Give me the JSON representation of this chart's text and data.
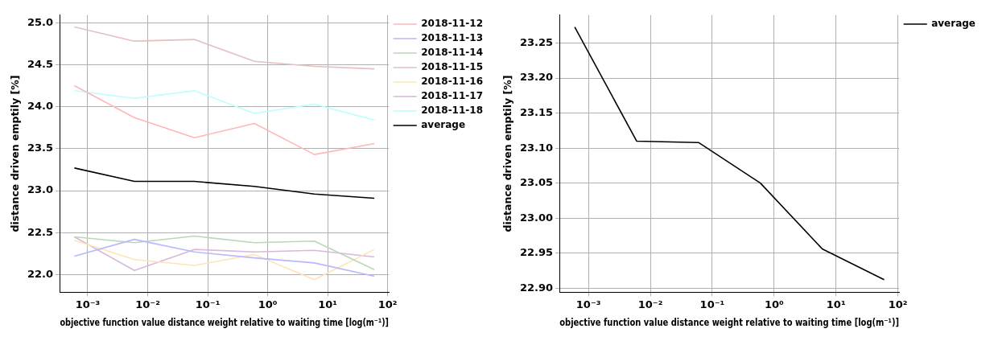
{
  "chart_data": [
    {
      "type": "line",
      "xlabel": "objective function value distance weight relative to waiting time [log(m⁻¹)]",
      "ylabel": "distance driven emptily [%]",
      "x": [
        0.0006,
        0.006,
        0.06,
        0.6,
        6,
        60
      ],
      "log": "x",
      "grid": true,
      "legend": "top right",
      "xlim": [
        0.00034,
        105
      ],
      "xticks": [
        {
          "value": 0.001,
          "label": "10⁻³"
        },
        {
          "value": 0.01,
          "label": "10⁻²"
        },
        {
          "value": 0.1,
          "label": "10⁻¹"
        },
        {
          "value": 1,
          "label": "10⁰"
        },
        {
          "value": 10,
          "label": "10¹"
        },
        {
          "value": 100,
          "label": "10²"
        }
      ],
      "ylim": [
        21.79,
        25.09
      ],
      "yticks": [
        {
          "value": 22,
          "label": "22.0"
        },
        {
          "value": 22.5,
          "label": "22.5"
        },
        {
          "value": 23,
          "label": "23.0"
        },
        {
          "value": 23.5,
          "label": "23.5"
        },
        {
          "value": 24,
          "label": "24.0"
        },
        {
          "value": 24.5,
          "label": "24.5"
        },
        {
          "value": 25,
          "label": "25.0"
        }
      ],
      "series": [
        {
          "name": "2018-11-12",
          "color": "#ffb8b8",
          "values": [
            24.25,
            23.87,
            23.63,
            23.8,
            23.43,
            23.56
          ]
        },
        {
          "name": "2018-11-13",
          "color": "#b8b8ff",
          "values": [
            22.22,
            22.42,
            22.27,
            22.2,
            22.14,
            21.98
          ]
        },
        {
          "name": "2018-11-14",
          "color": "#b8d9b8",
          "values": [
            22.45,
            22.38,
            22.46,
            22.38,
            22.4,
            22.06
          ]
        },
        {
          "name": "2018-11-15",
          "color": "#e4c0c0",
          "values": [
            24.95,
            24.78,
            24.8,
            24.54,
            24.48,
            24.45
          ]
        },
        {
          "name": "2018-11-16",
          "color": "#ffe4b8",
          "values": [
            22.41,
            22.18,
            22.11,
            22.24,
            21.94,
            22.3
          ]
        },
        {
          "name": "2018-11-17",
          "color": "#d9b8d9",
          "values": [
            22.45,
            22.05,
            22.3,
            22.27,
            22.29,
            22.21
          ]
        },
        {
          "name": "2018-11-18",
          "color": "#b8ffff",
          "values": [
            24.19,
            24.1,
            24.19,
            23.92,
            24.03,
            23.84
          ]
        },
        {
          "name": "average",
          "color": "#000000",
          "values": [
            23.27,
            23.11,
            23.11,
            23.05,
            22.96,
            22.91
          ]
        }
      ]
    },
    {
      "type": "line",
      "xlabel": "objective function value distance weight relative to waiting time [log(m⁻¹)]",
      "ylabel": "distance driven emptily [%]",
      "x": [
        0.0006,
        0.006,
        0.06,
        0.6,
        6,
        60
      ],
      "log": "x",
      "grid": true,
      "legend": "top right",
      "xlim": [
        0.00034,
        105
      ],
      "xticks": [
        {
          "value": 0.001,
          "label": "10⁻³"
        },
        {
          "value": 0.01,
          "label": "10⁻²"
        },
        {
          "value": 0.1,
          "label": "10⁻¹"
        },
        {
          "value": 1,
          "label": "10⁰"
        },
        {
          "value": 10,
          "label": "10¹"
        },
        {
          "value": 100,
          "label": "10²"
        }
      ],
      "ylim": [
        22.894,
        23.29
      ],
      "yticks": [
        {
          "value": 22.9,
          "label": "22.90"
        },
        {
          "value": 22.95,
          "label": "22.95"
        },
        {
          "value": 23,
          "label": "23.00"
        },
        {
          "value": 23.05,
          "label": "23.05"
        },
        {
          "value": 23.1,
          "label": "23.10"
        },
        {
          "value": 23.15,
          "label": "23.15"
        },
        {
          "value": 23.2,
          "label": "23.20"
        },
        {
          "value": 23.25,
          "label": "23.25"
        }
      ],
      "series": [
        {
          "name": "average",
          "color": "#000000",
          "values": [
            23.273,
            23.11,
            23.108,
            23.05,
            22.956,
            22.912
          ]
        }
      ]
    }
  ]
}
